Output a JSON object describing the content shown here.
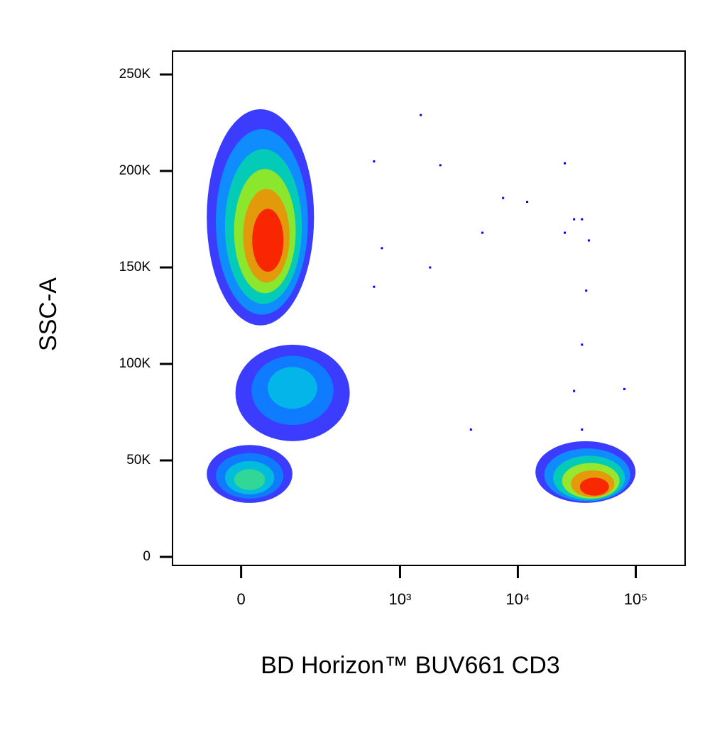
{
  "chart_data": {
    "type": "density",
    "xlabel": "BD Horizon™ BUV661 CD3",
    "ylabel": "SSC-A",
    "xscale": "biexponential",
    "xlim": [
      -160,
      262144
    ],
    "ylim": [
      -4400,
      262144
    ],
    "xticks": [
      0,
      {
        "value": 1000,
        "label": "10³"
      },
      {
        "value": 10000,
        "label": "10⁴"
      },
      {
        "value": 100000,
        "label": "10⁵"
      }
    ],
    "yticks": [
      0,
      {
        "value": 50000,
        "label": "50K"
      },
      {
        "value": 100000,
        "label": "100K"
      },
      {
        "value": 150000,
        "label": "150K"
      },
      {
        "value": 200000,
        "label": "200K"
      },
      {
        "value": 250000,
        "label": "250K"
      }
    ],
    "clusters": [
      {
        "x": 48,
        "y": 165000,
        "x_range": [
          -65,
          176
        ],
        "y_range": [
          120000,
          232000
        ],
        "colors": [
          "#1a1aff",
          "#00a8ff",
          "#00e0a0",
          "#b8f000",
          "#ff8000",
          "#ff0000"
        ]
      },
      {
        "x": 106,
        "y": 88000,
        "x_range": [
          -10,
          370
        ],
        "y_range": [
          60000,
          110000
        ],
        "colors": [
          "#1a1aff",
          "#0090ff",
          "#00c8e0"
        ]
      },
      {
        "x": 15,
        "y": 40000,
        "x_range": [
          -65,
          106
        ],
        "y_range": [
          28000,
          58000
        ],
        "colors": [
          "#1a1aff",
          "#0090ff",
          "#00d0d0",
          "#40e080"
        ]
      },
      {
        "x": 44000,
        "y": 37000,
        "x_range": [
          14100,
          99500
        ],
        "y_range": [
          28000,
          60000
        ],
        "colors": [
          "#1a1aff",
          "#00a8ff",
          "#00e0a0",
          "#c8f000",
          "#ff8000",
          "#ff0000"
        ]
      }
    ],
    "points": {
      "x": [
        600,
        1500,
        2200,
        5000,
        7500,
        12000,
        25000,
        30000,
        35000,
        40000,
        38000,
        35000,
        80000,
        1800,
        700,
        600,
        4000,
        30000,
        35000,
        25000
      ],
      "y": [
        205000,
        229000,
        203000,
        168000,
        186000,
        184000,
        204000,
        175000,
        175000,
        164000,
        138000,
        110000,
        87000,
        150000,
        160000,
        140000,
        66000,
        86000,
        66000,
        168000
      ],
      "color": "#0000ff"
    }
  }
}
